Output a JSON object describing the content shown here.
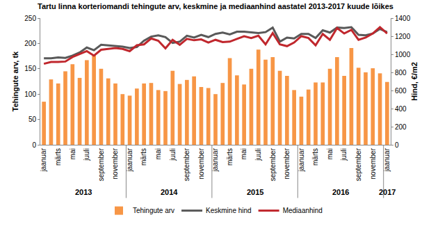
{
  "chart_data": {
    "type": "bar",
    "title": "Tartu linna korteriomandi tehingute arv, keskmine ja mediaanhind aastatel 2013-2017 kuude lõikes",
    "y_label": "Tehingute arv, tk",
    "y2_label": "Hind, €/m2",
    "categories": [
      "jaanuar",
      null,
      "märts",
      null,
      "mai",
      null,
      "juuli",
      null,
      "september",
      null,
      "november",
      null,
      "jaanuar",
      null,
      "märts",
      null,
      "mai",
      null,
      "juuli",
      null,
      "september",
      null,
      "november",
      null,
      "jaanuar",
      null,
      "märts",
      null,
      "mai",
      null,
      "juuli",
      null,
      "september",
      null,
      "november",
      null,
      "jaanuar",
      null,
      "märts",
      null,
      "mai",
      null,
      "juuli",
      null,
      "september",
      null,
      "november",
      null,
      "jaanuar"
    ],
    "year_labels": [
      {
        "text": "2013",
        "from": 0,
        "to": 11
      },
      {
        "text": "2014",
        "from": 12,
        "to": 23
      },
      {
        "text": "2015",
        "from": 24,
        "to": 35
      },
      {
        "text": "2016",
        "from": 36,
        "to": 47
      },
      {
        "text": "2017",
        "from": 48,
        "to": 48
      }
    ],
    "series": [
      {
        "name": "Tehingute arv",
        "type": "bar",
        "color": "#f79646",
        "values": [
          85,
          129,
          121,
          145,
          159,
          132,
          167,
          176,
          150,
          131,
          121,
          100,
          97,
          111,
          121,
          122,
          108,
          106,
          146,
          120,
          128,
          135,
          114,
          112,
          100,
          122,
          171,
          137,
          119,
          150,
          188,
          168,
          173,
          146,
          136,
          108,
          95,
          109,
          123,
          123,
          150,
          173,
          136,
          191,
          152,
          143,
          151,
          141,
          124
        ]
      },
      {
        "name": "Keskmine hind",
        "type": "line",
        "axis": "y2",
        "color": "#595959",
        "values": [
          955,
          955,
          965,
          960,
          985,
          1020,
          1075,
          1045,
          1105,
          1100,
          1095,
          1085,
          1070,
          1080,
          1150,
          1195,
          1210,
          1190,
          1125,
          1140,
          1205,
          1185,
          1215,
          1190,
          1225,
          1240,
          1220,
          1250,
          1250,
          1240,
          1235,
          1245,
          1295,
          1140,
          1185,
          1175,
          1225,
          1225,
          1180,
          1265,
          1240,
          1295,
          1290,
          1300,
          1215,
          1210,
          1230,
          1280,
          1245
        ]
      },
      {
        "name": "Mediaanhind",
        "type": "line",
        "axis": "y2",
        "color": "#c0272d",
        "values": [
          895,
          915,
          915,
          920,
          970,
          1000,
          1035,
          985,
          1050,
          1060,
          1070,
          1060,
          1035,
          1100,
          1110,
          1175,
          1150,
          1065,
          1160,
          1105,
          1170,
          1155,
          1165,
          1130,
          1160,
          1135,
          1140,
          1170,
          1200,
          1180,
          1205,
          1110,
          1235,
          1110,
          1090,
          1130,
          1200,
          1180,
          1100,
          1225,
          1160,
          1290,
          1230,
          1270,
          1160,
          1185,
          1230,
          1300,
          1230
        ]
      }
    ],
    "ylim": [
      0,
      250
    ],
    "yticks": [
      0,
      50,
      100,
      150,
      200,
      250
    ],
    "y2lim": [
      0,
      1400
    ],
    "y2ticks": [
      0,
      200,
      400,
      600,
      800,
      1000,
      1200,
      1400
    ],
    "grid": false,
    "legend": "bottom"
  }
}
